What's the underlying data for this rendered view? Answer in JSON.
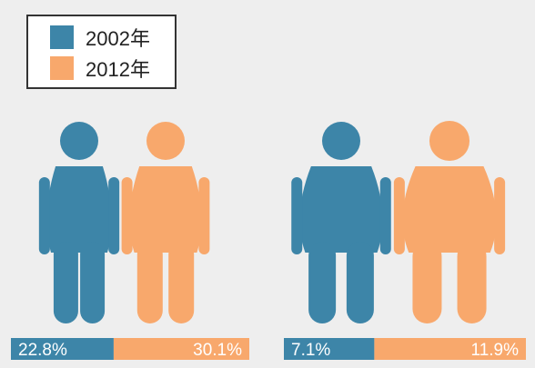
{
  "chart_data": {
    "type": "bar",
    "categories": [
      "",
      ""
    ],
    "series": [
      {
        "name": "2002年",
        "values": [
          22.8,
          7.1
        ],
        "labels": [
          "22.8%",
          "7.1%"
        ]
      },
      {
        "name": "2012年",
        "values": [
          30.1,
          11.9
        ],
        "labels": [
          "30.1%",
          "11.9%"
        ]
      }
    ],
    "title": "",
    "xlabel": "",
    "ylabel": "",
    "legend_position": "top-left",
    "grid": false
  },
  "colors": {
    "series_2002": "#3d85a8",
    "series_2012": "#f8a86c",
    "background": "#eeeeee",
    "legend_border": "#333333",
    "label_text": "#ffffff"
  },
  "icons": {
    "group_1": "overweight-figure-icon",
    "group_2": "obese-figure-icon"
  }
}
